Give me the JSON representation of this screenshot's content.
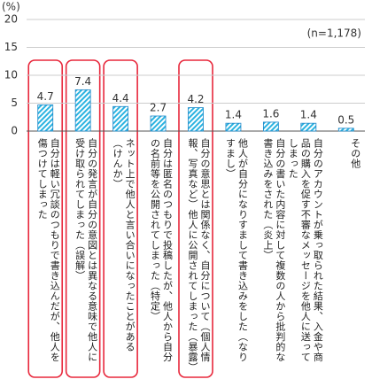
{
  "chart_data": {
    "type": "bar",
    "y_unit_label": "(%)",
    "annotation": "(n=1,178)",
    "categories": [
      "自分は軽い冗談のつもりで書き込んだが、他人を傷つけてしまった",
      "自分の発言が自分の意図とは異なる意味で他人に受け取られてしまった（誤解）",
      "ネット上で他人と言い合いになったことがある（けんか）",
      "自分は匿名のつもりで投稿したが、他人から自分の名前等を公開されてしまった（特定）",
      "自分の意思とは関係なく、自分について（個人情報、写真など）他人に公開されてしまった（暴露）",
      "他人が自分になりすまして書き込みをした（なりすまし）",
      "自分の書いた内容に対して複数の人から批判的な書き込みをされた（炎上）",
      "自分のアカウントが乗っ取られた結果、入金や商品の購入を促す不審なメッセージを他人に送ってしまった",
      "その他"
    ],
    "values": [
      4.7,
      7.4,
      4.4,
      2.7,
      4.2,
      1.4,
      1.6,
      1.4,
      0.5
    ],
    "color": "#2bb3e0",
    "highlight_indices": [
      0,
      1,
      2,
      4
    ],
    "highlight_color": "#e8283c",
    "ylim": [
      0,
      20
    ],
    "yticks": [
      0,
      5,
      10,
      15,
      20
    ],
    "grid": true
  }
}
